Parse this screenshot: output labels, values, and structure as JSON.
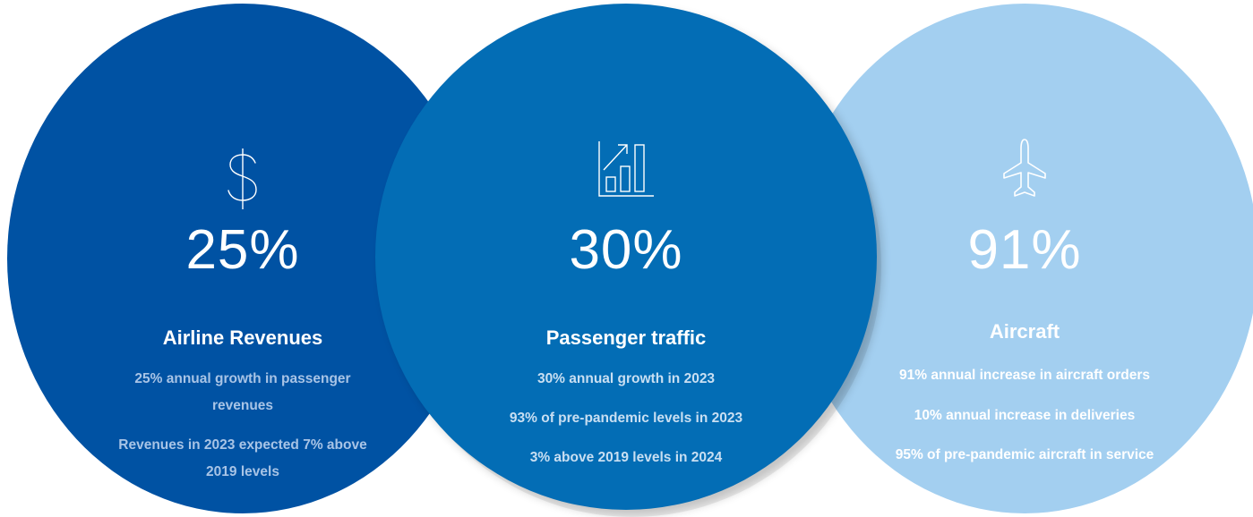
{
  "colors": {
    "circle_revenues": "#0052a3",
    "circle_traffic": "#036db5",
    "circle_aircraft": "#a3cff0"
  },
  "cards": [
    {
      "icon": "dollar-icon",
      "percent": "25%",
      "title": "Airline Revenues",
      "lines": [
        "25% annual growth in passenger",
        "revenues",
        "Revenues in 2023 expected 7% above",
        "2019 levels"
      ]
    },
    {
      "icon": "bar-chart-growth-icon",
      "percent": "30%",
      "title": "Passenger traffic",
      "lines": [
        "30% annual growth in 2023",
        "93% of pre-pandemic levels in 2023",
        "3% above 2019 levels in 2024"
      ]
    },
    {
      "icon": "airplane-icon",
      "percent": "91%",
      "title": "Aircraft",
      "lines": [
        "91% annual increase in aircraft orders",
        "10%  annual increase in deliveries",
        "95% of pre-pandemic aircraft in service"
      ]
    }
  ]
}
